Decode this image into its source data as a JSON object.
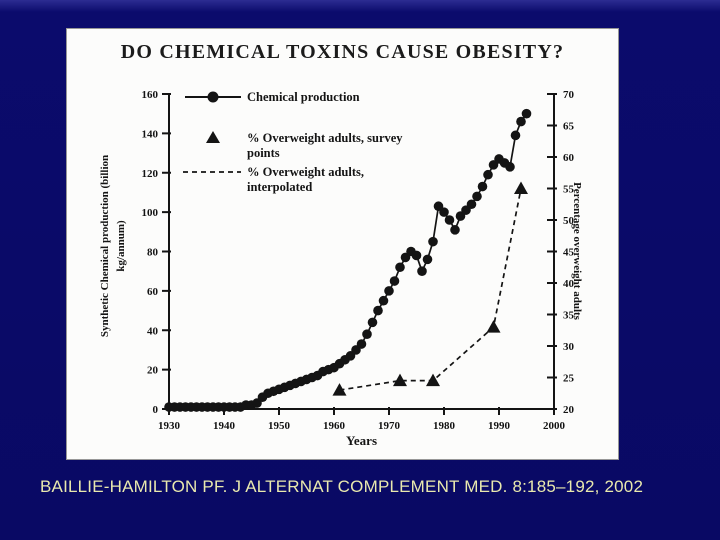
{
  "slide": {
    "background_color": "#0a0a68",
    "citation": "BAILLIE-HAMILTON PF. J ALTERNAT COMPLEMENT MED. 8:185–192, 2002",
    "citation_color": "#e9e9ae"
  },
  "panel": {
    "title": "DO CHEMICAL TOXINS CAUSE OBESITY?"
  },
  "chart_data": {
    "type": "line",
    "title": "DO CHEMICAL TOXINS CAUSE OBESITY?",
    "xlabel": "Years",
    "ylabel": "Synthetic Chemical production (billion kg/annum)",
    "ylabel_lines": [
      "Synthetic Chemical production (billion",
      "kg/annum)"
    ],
    "y2label": "Percentage overweight adults",
    "xlim": [
      1930,
      2000
    ],
    "ylim": [
      0,
      160
    ],
    "y2lim": [
      20,
      70
    ],
    "xticks": [
      1930,
      1940,
      1950,
      1960,
      1970,
      1980,
      1990,
      2000
    ],
    "yticks": [
      0,
      20,
      40,
      60,
      80,
      100,
      120,
      140,
      160
    ],
    "y2ticks": [
      20,
      25,
      30,
      35,
      40,
      45,
      50,
      55,
      60,
      65,
      70
    ],
    "grid": false,
    "legend_position": "top-left-inside",
    "ink_color": "#141414",
    "series": [
      {
        "name": "Chemical production",
        "axis": "left",
        "marker": "circle",
        "line": "solid",
        "points": [
          [
            1930,
            1
          ],
          [
            1931,
            1
          ],
          [
            1932,
            1
          ],
          [
            1933,
            1
          ],
          [
            1934,
            1
          ],
          [
            1935,
            1
          ],
          [
            1936,
            1
          ],
          [
            1937,
            1
          ],
          [
            1938,
            1
          ],
          [
            1939,
            1
          ],
          [
            1940,
            1
          ],
          [
            1941,
            1
          ],
          [
            1942,
            1
          ],
          [
            1943,
            1
          ],
          [
            1944,
            2
          ],
          [
            1945,
            2
          ],
          [
            1946,
            3
          ],
          [
            1947,
            6
          ],
          [
            1948,
            8
          ],
          [
            1949,
            9
          ],
          [
            1950,
            10
          ],
          [
            1951,
            11
          ],
          [
            1952,
            12
          ],
          [
            1953,
            13
          ],
          [
            1954,
            14
          ],
          [
            1955,
            15
          ],
          [
            1956,
            16
          ],
          [
            1957,
            17
          ],
          [
            1958,
            19
          ],
          [
            1959,
            20
          ],
          [
            1960,
            21
          ],
          [
            1961,
            23
          ],
          [
            1962,
            25
          ],
          [
            1963,
            27
          ],
          [
            1964,
            30
          ],
          [
            1965,
            33
          ],
          [
            1966,
            38
          ],
          [
            1967,
            44
          ],
          [
            1968,
            50
          ],
          [
            1969,
            55
          ],
          [
            1970,
            60
          ],
          [
            1971,
            65
          ],
          [
            1972,
            72
          ],
          [
            1973,
            77
          ],
          [
            1974,
            80
          ],
          [
            1975,
            78
          ],
          [
            1976,
            70
          ],
          [
            1977,
            76
          ],
          [
            1978,
            85
          ],
          [
            1979,
            103
          ],
          [
            1980,
            100
          ],
          [
            1981,
            96
          ],
          [
            1982,
            91
          ],
          [
            1983,
            98
          ],
          [
            1984,
            101
          ],
          [
            1985,
            104
          ],
          [
            1986,
            108
          ],
          [
            1987,
            113
          ],
          [
            1988,
            119
          ],
          [
            1989,
            124
          ],
          [
            1990,
            127
          ],
          [
            1991,
            125
          ],
          [
            1992,
            123
          ],
          [
            1993,
            139
          ],
          [
            1994,
            146
          ],
          [
            1995,
            150
          ]
        ]
      },
      {
        "name": "% Overweight adults, survey points",
        "axis": "right",
        "marker": "triangle",
        "line": "none",
        "points": [
          [
            1961,
            23
          ],
          [
            1972,
            24.5
          ],
          [
            1978,
            24.5
          ],
          [
            1989,
            33
          ],
          [
            1994,
            55
          ]
        ]
      },
      {
        "name": "% Overweight adults, interpolated",
        "axis": "right",
        "marker": "none",
        "line": "dashed",
        "points": [
          [
            1961,
            23
          ],
          [
            1972,
            24.5
          ],
          [
            1978,
            24.5
          ],
          [
            1989,
            33
          ],
          [
            1994,
            55
          ]
        ]
      }
    ],
    "legend": [
      {
        "marker": "circle-line",
        "lines": [
          "Chemical production"
        ]
      },
      {
        "marker": "triangle",
        "lines": [
          "% Overweight adults, survey",
          "points"
        ]
      },
      {
        "marker": "dashed-line",
        "lines": [
          "% Overweight adults,",
          "interpolated"
        ]
      }
    ]
  }
}
